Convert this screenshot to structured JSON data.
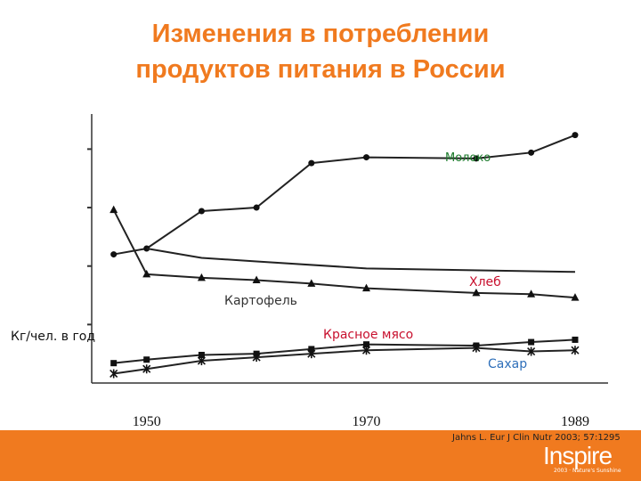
{
  "slide": {
    "title_line1": "Изменения в потреблении",
    "title_line2": "продуктов питания в России",
    "citation": "Jahns L. Eur J Clin Nutr 2003; 57:1295",
    "brand": {
      "name": "Inspire",
      "tagline": "2003 · Nature's Sunshine"
    },
    "colors": {
      "accent": "#f07a1f",
      "title": "#f07a1f",
      "moloko_label": "#1a7a2a",
      "hleb_label": "#c8102e",
      "kartofel_label": "#333333",
      "myaso_label": "#c8102e",
      "sahar_label": "#2e6fba",
      "series_line": "#222222"
    }
  },
  "chart_data": {
    "type": "line",
    "title": "",
    "xlabel": "",
    "ylabel": "Кг/чел. в год",
    "x": [
      1947,
      1950,
      1955,
      1960,
      1965,
      1970,
      1975,
      1980,
      1985,
      1989
    ],
    "x_tick_labels": [
      "1950",
      "1970",
      "1989"
    ],
    "x_tick_values": [
      1950,
      1970,
      1989
    ],
    "xlim": [
      1945,
      1992
    ],
    "ylim": [
      0,
      230
    ],
    "grid": false,
    "series": [
      {
        "name": "Молоко",
        "marker": "circle",
        "values": [
          110,
          115,
          147,
          150,
          188,
          193,
          null,
          192,
          197,
          212
        ]
      },
      {
        "name": "Хлеб",
        "marker": "none",
        "values": [
          null,
          115,
          107,
          104,
          null,
          98,
          null,
          null,
          null,
          95
        ]
      },
      {
        "name": "Картофель",
        "marker": "triangle",
        "values": [
          148,
          93,
          90,
          88,
          85,
          81,
          null,
          77,
          76,
          73
        ]
      },
      {
        "name": "Красное мясо",
        "marker": "square",
        "values": [
          17,
          20,
          24,
          25,
          29,
          33,
          null,
          32,
          35,
          37
        ]
      },
      {
        "name": "Сахар",
        "marker": "cross",
        "values": [
          8,
          12,
          19,
          22,
          25,
          28,
          null,
          30,
          27,
          28
        ]
      }
    ]
  }
}
